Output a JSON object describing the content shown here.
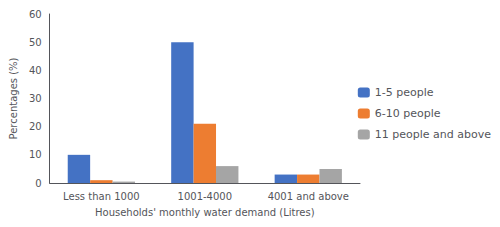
{
  "chart_data": {
    "type": "bar",
    "categories": [
      "Less than 1000",
      "1001-4000",
      "4001 and above"
    ],
    "series": [
      {
        "name": "1-5 people",
        "color": "#4472c4",
        "values": [
          10,
          50,
          3
        ]
      },
      {
        "name": "6-10 people",
        "color": "#ed7d31",
        "values": [
          1,
          21,
          3
        ]
      },
      {
        "name": "11 people and above",
        "color": "#a5a5a5",
        "values": [
          0.5,
          6,
          5
        ]
      }
    ],
    "xlabel": "Households' monthly water demand (Litres)",
    "ylabel": "Percentages (%)",
    "ylim": [
      0,
      60
    ],
    "yticks": [
      0,
      10,
      20,
      30,
      40,
      50,
      60
    ],
    "grid": false,
    "legend": "right"
  }
}
